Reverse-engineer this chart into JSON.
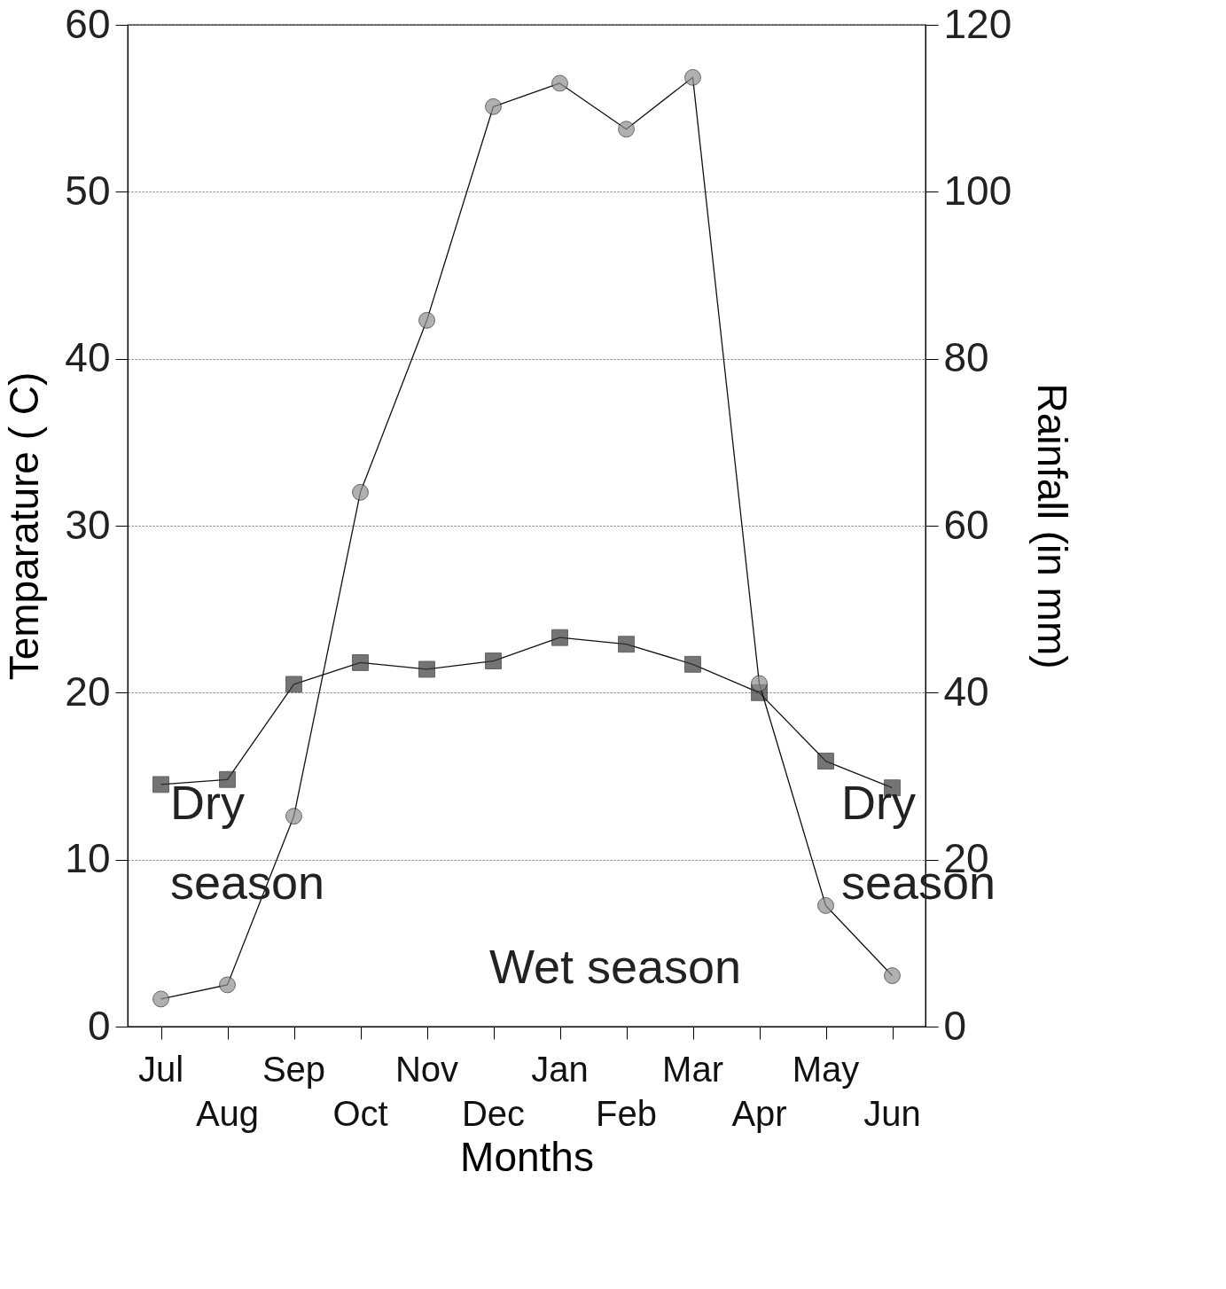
{
  "chart_data": {
    "type": "line",
    "xlabel": "Months",
    "ylabel": "Temparature ( C)",
    "y2label": "Rainfall (in mm)",
    "categories": [
      "Jul",
      "Aug",
      "Sep",
      "Oct",
      "Nov",
      "Dec",
      "Jan",
      "Feb",
      "Mar",
      "Apr",
      "May",
      "Jun"
    ],
    "series": [
      {
        "color": "#3a3a3a",
        "marker": "square",
        "values": [
          14.5,
          14.8,
          20.5,
          21.8,
          21.4,
          21.9,
          23.3,
          22.9,
          21.7,
          20.0,
          15.9,
          14.3
        ]
      },
      {
        "color": "#8f8f8f",
        "marker": "circle",
        "axis": "y2",
        "values": [
          3.3,
          5.0,
          25.2,
          64.0,
          84.6,
          110.2,
          113.0,
          107.5,
          113.7,
          41.1,
          14.5,
          6.1
        ]
      }
    ],
    "ylim": [
      0,
      60
    ],
    "yticks": [
      0,
      10,
      20,
      30,
      40,
      50,
      60
    ],
    "y2lim": [
      0,
      120
    ],
    "y2ticks": [
      0,
      20,
      40,
      60,
      80,
      100,
      120
    ],
    "grid": "y",
    "annotations": [
      "Dry season",
      "Wet season",
      "Dry season"
    ]
  }
}
